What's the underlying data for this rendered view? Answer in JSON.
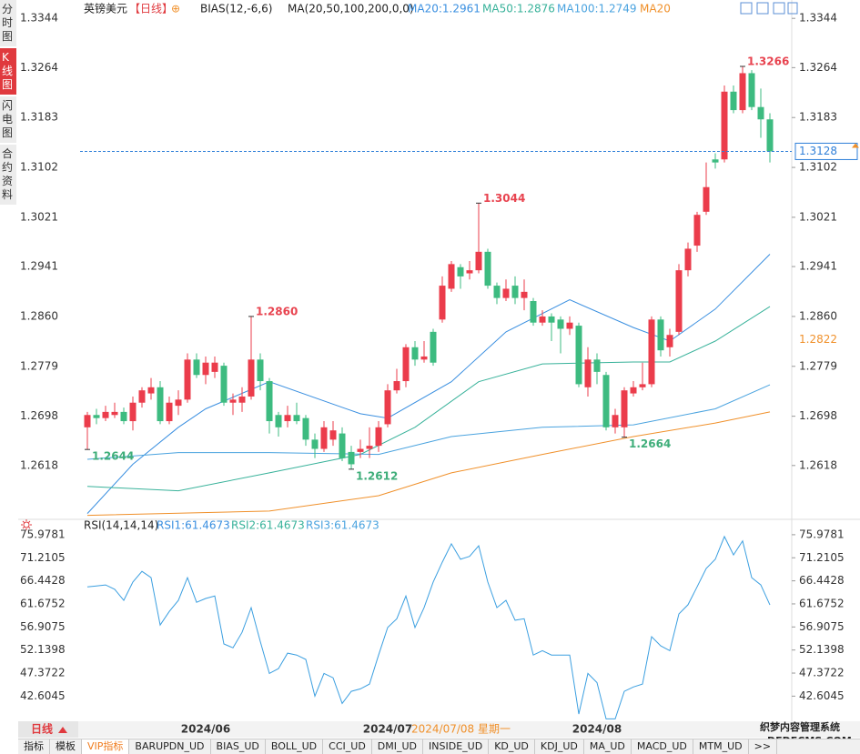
{
  "sidebar": {
    "tabs": [
      "分时图",
      "K线图",
      "闪电图",
      "合约资料"
    ],
    "active": 1
  },
  "chart_data": [
    {
      "type": "candlestick",
      "title": "英镑美元",
      "period": "【日线】",
      "toggle": "⊕",
      "indicator": "BIAS(12,-6,6)",
      "ma_params": "MA(20,50,100,200,0,0)",
      "up_color": "#eb3c4b",
      "down_color": "#3dbb80",
      "open": [
        1.268,
        1.27,
        1.2695,
        1.27,
        1.2705,
        1.269,
        1.272,
        1.2735,
        1.2745,
        1.269,
        1.2715,
        1.2725,
        1.279,
        1.2765,
        1.277,
        1.278,
        1.272,
        1.272,
        1.273,
        1.279,
        1.2755,
        1.27,
        1.269,
        1.27,
        1.2695,
        1.266,
        1.2645,
        1.266,
        1.267,
        1.264,
        1.264,
        1.2645,
        1.265,
        1.2685,
        1.274,
        1.2755,
        1.281,
        1.279,
        1.2835,
        1.2855,
        1.2905,
        1.294,
        1.293,
        1.2935,
        1.2965,
        1.291,
        1.289,
        1.291,
        1.289,
        1.2885,
        1.285,
        1.286,
        1.2855,
        1.284,
        1.2845,
        1.2745,
        1.279,
        1.2765,
        1.268,
        1.268,
        1.2735,
        1.2745,
        1.275,
        1.2855,
        1.281,
        1.2835,
        1.2935,
        1.2975,
        1.303,
        1.3115,
        1.3115,
        1.3225,
        1.3195,
        1.3255,
        1.32,
        1.318
      ],
      "high": [
        1.2705,
        1.271,
        1.2715,
        1.272,
        1.2712,
        1.273,
        1.2745,
        1.276,
        1.2755,
        1.273,
        1.274,
        1.28,
        1.28,
        1.2795,
        1.2795,
        1.2785,
        1.2735,
        1.2745,
        1.286,
        1.28,
        1.276,
        1.2705,
        1.2715,
        1.272,
        1.27,
        1.267,
        1.269,
        1.269,
        1.268,
        1.265,
        1.266,
        1.268,
        1.269,
        1.275,
        1.2775,
        1.2815,
        1.282,
        1.282,
        1.284,
        1.2925,
        1.295,
        1.2945,
        1.295,
        1.3044,
        1.297,
        1.2915,
        1.292,
        1.2925,
        1.292,
        1.289,
        1.287,
        1.2865,
        1.286,
        1.286,
        1.285,
        1.281,
        1.28,
        1.277,
        1.271,
        1.2745,
        1.2755,
        1.2785,
        1.286,
        1.286,
        1.284,
        1.2945,
        1.298,
        1.303,
        1.311,
        1.3125,
        1.3235,
        1.3235,
        1.3266,
        1.326,
        1.323,
        1.319
      ],
      "low": [
        1.2644,
        1.2685,
        1.269,
        1.2695,
        1.2685,
        1.2675,
        1.2712,
        1.2725,
        1.2685,
        1.2685,
        1.27,
        1.272,
        1.276,
        1.275,
        1.276,
        1.2715,
        1.27,
        1.2705,
        1.2725,
        1.274,
        1.267,
        1.2665,
        1.268,
        1.2685,
        1.265,
        1.263,
        1.264,
        1.265,
        1.2625,
        1.2612,
        1.263,
        1.263,
        1.264,
        1.268,
        1.2735,
        1.2745,
        1.278,
        1.2785,
        1.278,
        1.285,
        1.29,
        1.2905,
        1.292,
        1.293,
        1.2905,
        1.288,
        1.2885,
        1.288,
        1.287,
        1.2845,
        1.2845,
        1.282,
        1.28,
        1.283,
        1.2745,
        1.273,
        1.275,
        1.2675,
        1.267,
        1.2664,
        1.273,
        1.274,
        1.2745,
        1.2795,
        1.2795,
        1.283,
        1.2925,
        1.2965,
        1.3025,
        1.31,
        1.311,
        1.319,
        1.319,
        1.3195,
        1.315,
        1.311
      ],
      "close": [
        1.27,
        1.2695,
        1.2705,
        1.2705,
        1.269,
        1.272,
        1.274,
        1.2745,
        1.269,
        1.272,
        1.2725,
        1.279,
        1.2765,
        1.2785,
        1.2785,
        1.272,
        1.2725,
        1.273,
        1.279,
        1.2755,
        1.269,
        1.268,
        1.27,
        1.269,
        1.266,
        1.2645,
        1.268,
        1.2675,
        1.263,
        1.262,
        1.2645,
        1.265,
        1.268,
        1.274,
        1.2755,
        1.281,
        1.279,
        1.2795,
        1.2785,
        1.291,
        1.2945,
        1.2925,
        1.2935,
        1.2965,
        1.291,
        1.289,
        1.2905,
        1.289,
        1.29,
        1.285,
        1.286,
        1.285,
        1.284,
        1.285,
        1.275,
        1.279,
        1.277,
        1.268,
        1.27,
        1.274,
        1.2745,
        1.275,
        1.2855,
        1.2805,
        1.283,
        1.2935,
        1.297,
        1.3025,
        1.307,
        1.311,
        1.3225,
        1.3195,
        1.3255,
        1.32,
        1.318,
        1.3128
      ],
      "xlim": [
        -0.8,
        77.4
      ],
      "xticks": [
        {
          "value": 13,
          "label": "2024/06"
        },
        {
          "value": 33,
          "label": "2024/07"
        },
        {
          "value": 56,
          "label": "2024/08"
        }
      ],
      "cursor_label": "2024/07/08 星期一",
      "ylim": [
        1.2535,
        1.3362
      ],
      "yticks": [
        1.3344,
        1.3264,
        1.3183,
        1.3102,
        1.3021,
        1.2941,
        {
          "value": 1.286,
          "label": "1.2860"
        },
        1.2779,
        1.2698,
        1.2618
      ],
      "ma_series": [
        {
          "name": "MA20:1.2961",
          "color": "#3a8fe0",
          "x": [
            0,
            5,
            10,
            13,
            20,
            30,
            33,
            40,
            46,
            53,
            60,
            64,
            69,
            75
          ],
          "values": [
            1.254,
            1.262,
            1.268,
            1.271,
            1.2754,
            1.2702,
            1.2695,
            1.2754,
            1.2835,
            1.2887,
            1.2842,
            1.282,
            1.2872,
            1.2961
          ]
        },
        {
          "name": "MA50:1.2876",
          "color": "#38b29a",
          "x": [
            0,
            10,
            20,
            30,
            36,
            43,
            50,
            60,
            64,
            69,
            75
          ],
          "values": [
            1.2584,
            1.2577,
            1.2606,
            1.2636,
            1.268,
            1.2754,
            1.2783,
            1.2786,
            1.2786,
            1.282,
            1.2876
          ]
        },
        {
          "name": "MA100:1.2749",
          "color": "#4aa3df",
          "x": [
            0,
            10,
            20,
            32,
            40,
            50,
            60,
            69,
            75
          ],
          "values": [
            1.2628,
            1.2639,
            1.2639,
            1.2636,
            1.2665,
            1.268,
            1.2684,
            1.271,
            1.2749
          ]
        },
        {
          "name": "MA20",
          "color": "#f0902a",
          "x": [
            0,
            20,
            32,
            40,
            50,
            60,
            69,
            75
          ],
          "values": [
            1.2537,
            1.2544,
            1.2569,
            1.2606,
            1.2636,
            1.2665,
            1.2687,
            1.2705
          ]
        }
      ],
      "annotations": [
        {
          "index": 18,
          "value": 1.286,
          "label": "1.2860",
          "color": "#e8434f"
        },
        {
          "index": 43,
          "value": 1.3044,
          "label": "1.3044",
          "color": "#e8434f"
        },
        {
          "index": 72,
          "value": 1.3266,
          "label": "1.3266",
          "color": "#e8434f"
        },
        {
          "index": 0,
          "value": 1.2644,
          "label": "1.2644",
          "color": "#3fae7a"
        },
        {
          "index": 29,
          "value": 1.2612,
          "label": "1.2612",
          "color": "#3fae7a"
        },
        {
          "index": 59,
          "value": 1.2664,
          "label": "1.2664",
          "color": "#3fae7a"
        }
      ],
      "last_price": 1.3128,
      "last_price_color": "#2f7fd8",
      "marker_value": 1.2822,
      "marker_color": "#f0902a"
    },
    {
      "type": "line",
      "title": "RSI(14,14,14)",
      "legend": [
        {
          "name": "RSI1:61.4673",
          "color": "#3a8fe0"
        },
        {
          "name": "RSI2:61.4673",
          "color": "#38b29a"
        },
        {
          "name": "RSI3:61.4673",
          "color": "#4aa3df"
        }
      ],
      "color": "#3b9fe0",
      "values": [
        65.2,
        65.4,
        65.6,
        64.7,
        62.4,
        66.2,
        68.4,
        67.1,
        57.3,
        60.1,
        62.4,
        67.1,
        62.0,
        62.8,
        63.3,
        53.4,
        52.6,
        55.8,
        60.9,
        53.9,
        47.3,
        48.3,
        51.5,
        51.1,
        50.2,
        42.6,
        47.3,
        46.4,
        41.1,
        43.6,
        44.1,
        45.1,
        51.1,
        56.8,
        58.6,
        63.3,
        56.8,
        60.9,
        66.2,
        70.3,
        74.1,
        70.9,
        71.5,
        73.7,
        66.2,
        60.9,
        62.4,
        58.3,
        58.6,
        51.1,
        52.0,
        51.1,
        51.1,
        51.1,
        38.9,
        47.3,
        45.4,
        37.9,
        37.9,
        43.6,
        44.5,
        45.1,
        54.9,
        53.0,
        52.0,
        59.6,
        61.5,
        65.2,
        69.0,
        70.9,
        75.6,
        71.8,
        74.7,
        67.1,
        65.6,
        61.4673
      ],
      "xlim": [
        -0.8,
        77.4
      ],
      "ylim": [
        37.6,
        76.9
      ],
      "yticks": [
        75.9781,
        71.2105,
        66.4428,
        61.6752,
        56.9075,
        52.1398,
        47.3722,
        42.6045
      ]
    }
  ],
  "bottom_bar": {
    "period": "日线",
    "tabs": [
      "指标",
      "模板",
      "VIP指标",
      "BARUPDN_UD",
      "BIAS_UD",
      "BOLL_UD",
      "CCI_UD",
      "DMI_UD",
      "INSIDE_UD",
      "KD_UD",
      "KDJ_UD",
      "MA_UD",
      "MACD_UD",
      "MTM_UD",
      ">>"
    ],
    "active_tab": 2,
    "watermark": [
      "织梦内容管理系统",
      "DEDECMS.COM"
    ]
  }
}
